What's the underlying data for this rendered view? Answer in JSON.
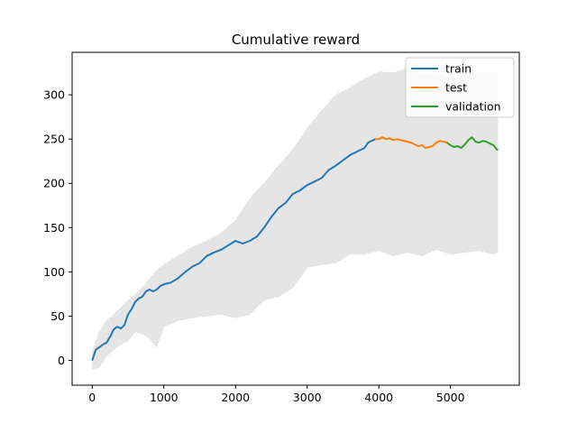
{
  "chart_data": {
    "type": "line",
    "title": "Cumulative reward",
    "xlabel": "",
    "ylabel": "",
    "xlim": [
      -280,
      5960
    ],
    "ylim": [
      -28,
      348
    ],
    "x_ticks": [
      0,
      1000,
      2000,
      3000,
      4000,
      5000
    ],
    "y_ticks": [
      0,
      50,
      100,
      150,
      200,
      250,
      300
    ],
    "grid": false,
    "legend": "upper right",
    "band": {
      "color": "#e5e5e5",
      "x": [
        0,
        100,
        200,
        300,
        400,
        500,
        600,
        700,
        800,
        900,
        1000,
        1200,
        1400,
        1600,
        1800,
        2000,
        2200,
        2400,
        2600,
        2800,
        3000,
        3200,
        3400,
        3600,
        3800,
        4000,
        4200,
        4400,
        4600,
        4800,
        5000,
        5200,
        5400,
        5600,
        5660
      ],
      "upper": [
        10,
        32,
        45,
        52,
        60,
        68,
        74,
        82,
        92,
        102,
        108,
        118,
        128,
        135,
        144,
        158,
        183,
        200,
        220,
        238,
        262,
        282,
        300,
        308,
        318,
        326,
        325,
        330,
        322,
        325,
        318,
        322,
        326,
        326,
        325
      ],
      "lower": [
        -10,
        -8,
        5,
        12,
        18,
        22,
        32,
        30,
        25,
        15,
        38,
        45,
        48,
        50,
        52,
        48,
        52,
        68,
        72,
        82,
        105,
        108,
        110,
        120,
        120,
        124,
        118,
        122,
        118,
        125,
        120,
        122,
        124,
        120,
        122
      ]
    },
    "series": [
      {
        "name": "train",
        "color": "#1f77b4",
        "x": [
          0,
          50,
          100,
          150,
          200,
          260,
          300,
          350,
          400,
          450,
          500,
          550,
          600,
          650,
          700,
          750,
          800,
          850,
          900,
          950,
          1000,
          1100,
          1200,
          1300,
          1400,
          1500,
          1600,
          1700,
          1800,
          1900,
          2000,
          2100,
          2200,
          2300,
          2400,
          2500,
          2600,
          2700,
          2800,
          2900,
          3000,
          3100,
          3200,
          3300,
          3400,
          3500,
          3600,
          3700,
          3800,
          3850,
          3900,
          3950
        ],
        "y": [
          0,
          12,
          15,
          18,
          20,
          28,
          35,
          38,
          36,
          40,
          52,
          58,
          66,
          70,
          72,
          78,
          80,
          78,
          80,
          84,
          86,
          88,
          93,
          100,
          106,
          110,
          118,
          122,
          125,
          130,
          135,
          132,
          135,
          140,
          150,
          162,
          172,
          178,
          188,
          192,
          198,
          202,
          206,
          215,
          220,
          226,
          232,
          236,
          240,
          246,
          248,
          250
        ]
      },
      {
        "name": "test",
        "color": "#ff7f0e",
        "x": [
          3950,
          4000,
          4050,
          4100,
          4150,
          4200,
          4250,
          4300,
          4350,
          4400,
          4450,
          4500,
          4550,
          4600,
          4650,
          4700,
          4750,
          4800,
          4850,
          4900,
          4950
        ],
        "y": [
          250,
          250,
          252,
          250,
          251,
          249,
          250,
          249,
          248,
          247,
          246,
          244,
          242,
          243,
          240,
          241,
          242,
          246,
          248,
          247,
          246
        ]
      },
      {
        "name": "validation",
        "color": "#2ca02c",
        "x": [
          4950,
          5000,
          5050,
          5100,
          5150,
          5200,
          5250,
          5300,
          5350,
          5400,
          5450,
          5500,
          5550,
          5600,
          5650,
          5660
        ],
        "y": [
          246,
          243,
          241,
          242,
          240,
          244,
          249,
          252,
          247,
          246,
          248,
          247,
          245,
          243,
          238,
          239
        ]
      }
    ]
  }
}
